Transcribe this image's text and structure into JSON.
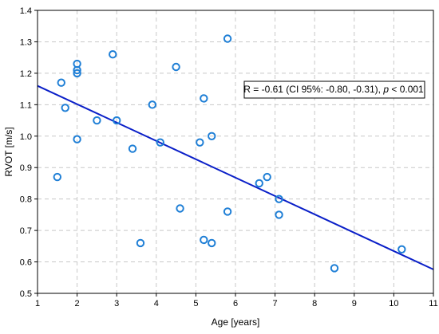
{
  "chart_data": {
    "type": "scatter",
    "xlabel": "Age [years]",
    "ylabel": "RVOT [m/s]",
    "xlim": [
      1,
      11
    ],
    "ylim": [
      0.5,
      1.4
    ],
    "x_ticks": [
      1,
      2,
      3,
      4,
      5,
      6,
      7,
      8,
      9,
      10,
      11
    ],
    "y_ticks": [
      0.5,
      0.6,
      0.7,
      0.8,
      0.9,
      1.0,
      1.1,
      1.2,
      1.3,
      1.4
    ],
    "x_tick_labels": [
      "1",
      "2",
      "3",
      "4",
      "5",
      "6",
      "7",
      "8",
      "9",
      "10",
      "11"
    ],
    "y_tick_labels": [
      "0.5",
      "0.6",
      "0.7",
      "0.8",
      "0.9",
      "1.0",
      "1.1",
      "1.2",
      "1.3",
      "1.4"
    ],
    "grid": true,
    "points": [
      {
        "x": 1.5,
        "y": 0.87
      },
      {
        "x": 1.6,
        "y": 1.17
      },
      {
        "x": 1.7,
        "y": 1.09
      },
      {
        "x": 2.0,
        "y": 1.23
      },
      {
        "x": 2.0,
        "y": 1.21
      },
      {
        "x": 2.0,
        "y": 1.2
      },
      {
        "x": 2.0,
        "y": 0.99
      },
      {
        "x": 2.5,
        "y": 1.05
      },
      {
        "x": 2.9,
        "y": 1.26
      },
      {
        "x": 3.0,
        "y": 1.05
      },
      {
        "x": 3.4,
        "y": 0.96
      },
      {
        "x": 3.6,
        "y": 0.66
      },
      {
        "x": 3.9,
        "y": 1.1
      },
      {
        "x": 4.1,
        "y": 0.98
      },
      {
        "x": 4.5,
        "y": 1.22
      },
      {
        "x": 4.6,
        "y": 0.77
      },
      {
        "x": 5.1,
        "y": 0.98
      },
      {
        "x": 5.2,
        "y": 1.12
      },
      {
        "x": 5.2,
        "y": 0.67
      },
      {
        "x": 5.4,
        "y": 1.0
      },
      {
        "x": 5.4,
        "y": 0.66
      },
      {
        "x": 5.8,
        "y": 1.31
      },
      {
        "x": 5.8,
        "y": 0.76
      },
      {
        "x": 6.6,
        "y": 0.85
      },
      {
        "x": 6.8,
        "y": 0.87
      },
      {
        "x": 7.1,
        "y": 0.8
      },
      {
        "x": 7.1,
        "y": 0.75
      },
      {
        "x": 8.5,
        "y": 0.58
      },
      {
        "x": 10.2,
        "y": 0.64
      }
    ],
    "regression_line": {
      "x": [
        1,
        11
      ],
      "y": [
        1.16,
        0.576
      ]
    },
    "annotation": {
      "prefix": "R = -0.61 (CI 95%: -0.80, -0.31), ",
      "p_symbol": "p",
      "suffix": " < 0.001"
    },
    "colors": {
      "points": "#1f7fd6",
      "line": "#0a1fc8",
      "grid": "#c8c8c8"
    }
  }
}
